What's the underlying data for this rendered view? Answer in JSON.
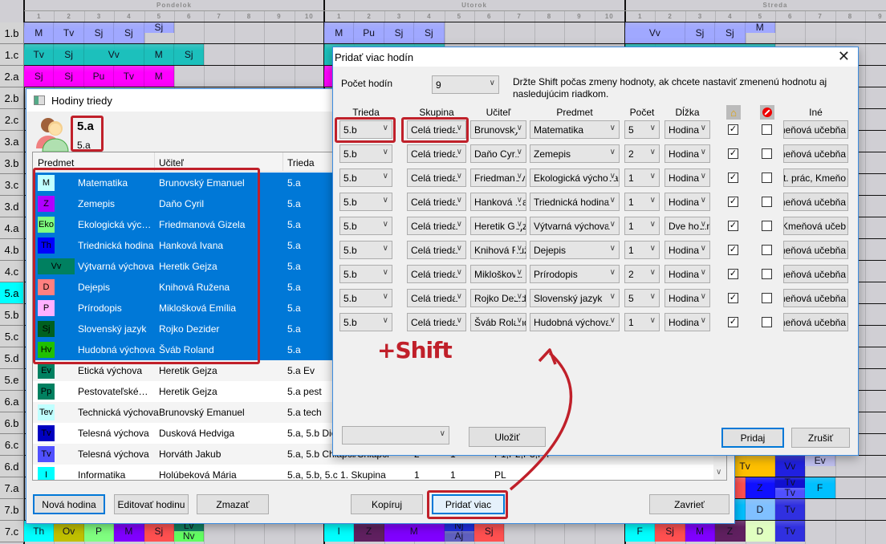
{
  "timetable": {
    "days": [
      "Pondelok",
      "Utorok",
      "Streda"
    ],
    "periods": [
      "1",
      "2",
      "3",
      "4",
      "5",
      "6",
      "7",
      "8",
      "9",
      "10"
    ],
    "rows": [
      "1.b",
      "1.c",
      "2.a",
      "2.b",
      "2.c",
      "3.a",
      "3.b",
      "3.c",
      "3.d",
      "4.a",
      "4.b",
      "4.c",
      "5.a",
      "5.b",
      "5.c",
      "5.d",
      "5.e",
      "6.a",
      "6.b",
      "6.c",
      "6.d",
      "7.a",
      "7.b",
      "7.c"
    ],
    "highlight_row": "5.a",
    "cells": [
      {
        "row": 0,
        "day": 0,
        "col": 1,
        "span": 1,
        "text": "M",
        "color": "#a0a8ff"
      },
      {
        "row": 0,
        "day": 0,
        "col": 2,
        "span": 1,
        "text": "Tv",
        "color": "#a0a8ff"
      },
      {
        "row": 0,
        "day": 0,
        "col": 3,
        "span": 1,
        "text": "Sj",
        "color": "#a0a8ff"
      },
      {
        "row": 0,
        "day": 0,
        "col": 4,
        "span": 1,
        "text": "Sj",
        "color": "#a0a8ff"
      },
      {
        "row": 0,
        "day": 0,
        "col": 5,
        "span": 1,
        "text": "Sj",
        "color": "#a0a8ff",
        "half": "top"
      },
      {
        "row": 1,
        "day": 0,
        "col": 1,
        "span": 1,
        "text": "Tv",
        "color": "#1cc0bc"
      },
      {
        "row": 1,
        "day": 0,
        "col": 2,
        "span": 1,
        "text": "Sj",
        "color": "#1cc0bc"
      },
      {
        "row": 1,
        "day": 0,
        "col": 3,
        "span": 2,
        "text": "Vv",
        "color": "#1cc0bc"
      },
      {
        "row": 1,
        "day": 0,
        "col": 5,
        "span": 1,
        "text": "M",
        "color": "#1cc0bc"
      },
      {
        "row": 1,
        "day": 0,
        "col": 6,
        "span": 1,
        "text": "Sj",
        "color": "#1cc0bc"
      },
      {
        "row": 2,
        "day": 0,
        "col": 1,
        "span": 1,
        "text": "Sj",
        "color": "#ff00ff"
      },
      {
        "row": 2,
        "day": 0,
        "col": 2,
        "span": 1,
        "text": "Sj",
        "color": "#ff00ff"
      },
      {
        "row": 2,
        "day": 0,
        "col": 3,
        "span": 1,
        "text": "Pu",
        "color": "#ff00ff"
      },
      {
        "row": 2,
        "day": 0,
        "col": 4,
        "span": 1,
        "text": "Tv",
        "color": "#ff00ff"
      },
      {
        "row": 2,
        "day": 0,
        "col": 5,
        "span": 1,
        "text": "M",
        "color": "#ff00ff"
      },
      {
        "row": 0,
        "day": 1,
        "col": 1,
        "span": 1,
        "text": "M",
        "color": "#a0a8ff"
      },
      {
        "row": 0,
        "day": 1,
        "col": 2,
        "span": 1,
        "text": "Pu",
        "color": "#a0a8ff"
      },
      {
        "row": 0,
        "day": 1,
        "col": 3,
        "span": 1,
        "text": "Sj",
        "color": "#a0a8ff"
      },
      {
        "row": 0,
        "day": 1,
        "col": 4,
        "span": 1,
        "text": "Sj",
        "color": "#a0a8ff"
      },
      {
        "row": 1,
        "day": 1,
        "col": 1,
        "span": 4,
        "text": "",
        "color": "#1cc0bc"
      },
      {
        "row": 2,
        "day": 1,
        "col": 1,
        "span": 4,
        "text": "",
        "color": "#ff00ff"
      },
      {
        "row": 0,
        "day": 2,
        "col": 1,
        "span": 2,
        "text": "Vv",
        "color": "#a0a8ff"
      },
      {
        "row": 0,
        "day": 2,
        "col": 3,
        "span": 1,
        "text": "Sj",
        "color": "#a0a8ff"
      },
      {
        "row": 0,
        "day": 2,
        "col": 4,
        "span": 1,
        "text": "Sj",
        "color": "#a0a8ff"
      },
      {
        "row": 0,
        "day": 2,
        "col": 5,
        "span": 1,
        "text": "M",
        "color": "#a0a8ff",
        "half": "top"
      },
      {
        "row": 1,
        "day": 2,
        "col": 1,
        "span": 5,
        "text": "",
        "color": "#1cc0bc"
      },
      {
        "row": 20,
        "day": 2,
        "col": 4,
        "span": 2,
        "text": "Tv",
        "color": "#ffc000"
      },
      {
        "row": 20,
        "day": 2,
        "col": 6,
        "span": 1,
        "text": "Vv",
        "color": "#2020e0"
      },
      {
        "row": 20,
        "day": 2,
        "col": 7,
        "span": 1,
        "text": "Ev",
        "color": "#c0c0f0",
        "half": "top"
      },
      {
        "row": 21,
        "day": 2,
        "col": 4,
        "span": 1,
        "text": "",
        "color": "#ff5050"
      },
      {
        "row": 21,
        "day": 2,
        "col": 5,
        "span": 1,
        "text": "Z",
        "color": "#1010ff"
      },
      {
        "row": 21,
        "day": 2,
        "col": 6,
        "span": 1,
        "text": "Tv",
        "color": "#1010d0",
        "half": "top"
      },
      {
        "row": 21,
        "day": 2,
        "col": 6,
        "span": 1,
        "text": "Tv",
        "color": "#5050ff",
        "half": "bottom"
      },
      {
        "row": 21,
        "day": 2,
        "col": 7,
        "span": 1,
        "text": "F",
        "color": "#00c0ff"
      },
      {
        "row": 22,
        "day": 2,
        "col": 4,
        "span": 1,
        "text": "",
        "color": "#00c0ff"
      },
      {
        "row": 22,
        "day": 2,
        "col": 5,
        "span": 1,
        "text": "D",
        "color": "#80c0ff"
      },
      {
        "row": 22,
        "day": 2,
        "col": 6,
        "span": 1,
        "text": "Tv",
        "color": "#3030e0"
      },
      {
        "row": 23,
        "day": 0,
        "col": 1,
        "span": 1,
        "text": "Th",
        "color": "#00ffff"
      },
      {
        "row": 23,
        "day": 0,
        "col": 2,
        "span": 1,
        "text": "Ov",
        "color": "#c0c000"
      },
      {
        "row": 23,
        "day": 0,
        "col": 3,
        "span": 1,
        "text": "P",
        "color": "#80ff80"
      },
      {
        "row": 23,
        "day": 0,
        "col": 4,
        "span": 1,
        "text": "M",
        "color": "#8000ff"
      },
      {
        "row": 23,
        "day": 0,
        "col": 5,
        "span": 1,
        "text": "Sj",
        "color": "#ff5050"
      },
      {
        "row": 23,
        "day": 0,
        "col": 6,
        "span": 1,
        "text": "Lv",
        "color": "#108060",
        "half": "top"
      },
      {
        "row": 23,
        "day": 0,
        "col": 6,
        "span": 1,
        "text": "Nv",
        "color": "#60ff60",
        "half": "bottom"
      },
      {
        "row": 23,
        "day": 1,
        "col": 1,
        "span": 1,
        "text": "I",
        "color": "#00ffff"
      },
      {
        "row": 23,
        "day": 1,
        "col": 2,
        "span": 1,
        "text": "Z",
        "color": "#602060"
      },
      {
        "row": 23,
        "day": 1,
        "col": 3,
        "span": 2,
        "text": "M",
        "color": "#8000ff"
      },
      {
        "row": 23,
        "day": 1,
        "col": 5,
        "span": 1,
        "text": "Nj",
        "color": "#2030e0",
        "half": "top"
      },
      {
        "row": 23,
        "day": 1,
        "col": 5,
        "span": 1,
        "text": "Aj",
        "color": "#6060c0",
        "half": "bottom"
      },
      {
        "row": 23,
        "day": 1,
        "col": 6,
        "span": 1,
        "text": "Sj",
        "color": "#ff5050"
      },
      {
        "row": 23,
        "day": 2,
        "col": 1,
        "span": 1,
        "text": "F",
        "color": "#00ffff"
      },
      {
        "row": 23,
        "day": 2,
        "col": 2,
        "span": 1,
        "text": "Sj",
        "color": "#ff5050"
      },
      {
        "row": 23,
        "day": 2,
        "col": 3,
        "span": 1,
        "text": "M",
        "color": "#8000ff"
      },
      {
        "row": 23,
        "day": 2,
        "col": 4,
        "span": 1,
        "text": "Z",
        "color": "#602060"
      },
      {
        "row": 23,
        "day": 2,
        "col": 5,
        "span": 1,
        "text": "D",
        "color": "#e0ffc0"
      },
      {
        "row": 23,
        "day": 2,
        "col": 6,
        "span": 1,
        "text": "Tv",
        "color": "#3030e0"
      }
    ]
  },
  "class_dialog": {
    "title": "Hodiny triedy",
    "class_name": "5.a",
    "class_short": "5.a",
    "columns": [
      "Predmet",
      "Učiteľ",
      "Trieda"
    ],
    "rows": [
      {
        "badge": "M",
        "color": "#c0ffff",
        "subject": "Matematika",
        "teacher": "Brunovský Emanuel",
        "class": "5.a",
        "selected": true
      },
      {
        "badge": "Z",
        "color": "#b000ff",
        "subject": "Zemepis",
        "teacher": "Daňo Cyril",
        "class": "5.a",
        "selected": true
      },
      {
        "badge": "Eko",
        "color": "#80ff80",
        "subject": "Ekologická výc…",
        "teacher": "Friedmanová Gizela",
        "class": "5.a",
        "selected": true
      },
      {
        "badge": "Th",
        "color": "#0000ff",
        "subject": "Triednická hodina",
        "teacher": "Hanková Ivana",
        "class": "5.a",
        "selected": true
      },
      {
        "badge": "Vv",
        "color": "#008060",
        "subject": "Výtvarná výchova",
        "teacher": "Heretik Gejza",
        "class": "5.a",
        "selected": true,
        "wide": true
      },
      {
        "badge": "D",
        "color": "#ff8080",
        "subject": "Dejepis",
        "teacher": "Knihová Ružena",
        "class": "5.a",
        "selected": true
      },
      {
        "badge": "P",
        "color": "#ffb0ff",
        "subject": "Prírodopis",
        "teacher": "Miklošková Emília",
        "class": "5.a",
        "selected": true
      },
      {
        "badge": "Sj",
        "color": "#006020",
        "subject": "Slovenský jazyk",
        "teacher": "Rojko Dezider",
        "class": "5.a",
        "selected": true
      },
      {
        "badge": "Hv",
        "color": "#20c000",
        "subject": "Hudobná výchova",
        "teacher": "Šváb Roland",
        "class": "5.a",
        "selected": true
      },
      {
        "badge": "Ev",
        "color": "#008060",
        "subject": "Etická výchova",
        "teacher": "Heretik Gejza",
        "class": "5.a Ev",
        "selected": false
      },
      {
        "badge": "Pp",
        "color": "#008060",
        "subject": "Pestovateľské…",
        "teacher": "Heretik Gejza",
        "class": "5.a pest",
        "selected": false
      },
      {
        "badge": "Tev",
        "color": "#c0ffff",
        "subject": "Technická výchova",
        "teacher": "Brunovský Emanuel",
        "class": "5.a tech",
        "selected": false
      },
      {
        "badge": "Tv",
        "color": "#0000c0",
        "subject": "Telesná výchova",
        "teacher": "Dusková Hedviga",
        "class": "5.a, 5.b Die",
        "selected": false
      },
      {
        "badge": "Tv",
        "color": "#5050ff",
        "subject": "Telesná výchova",
        "teacher": "Horváth Jakub",
        "class": "5.a, 5.b Chlapci/Chlapci",
        "extra": [
          "2",
          "1",
          "P1,P2,P3,P4"
        ],
        "selected": false
      },
      {
        "badge": "I",
        "color": "#00ffff",
        "subject": "Informatika",
        "teacher": "Holúbeková Mária",
        "class": "5.a, 5.b, 5.c 1. Skupina",
        "extra": [
          "1",
          "1",
          "PL"
        ],
        "selected": false
      }
    ],
    "buttons": {
      "new": "Nová hodina",
      "edit": "Editovať hodinu",
      "delete": "Zmazať",
      "copy": "Kopíruj",
      "add_more": "Pridať viac",
      "close": "Zavrieť"
    }
  },
  "add_dialog": {
    "title": "Pridať viac hodín",
    "count_label": "Počet hodín",
    "count_value": "9",
    "hint": "Držte Shift počas zmeny hodnoty, ak chcete nastaviť zmenenú hodnotu aj nasledujúcim riadkom.",
    "columns": [
      "Trieda",
      "Skupina",
      "Učiteľ",
      "Predmet",
      "Počet",
      "Dĺžka",
      "",
      "",
      "Iné"
    ],
    "rows": [
      {
        "class": "5.b",
        "group": "Celá trieda",
        "teacher": "Brunovský",
        "subject": "Matematika",
        "count": "5",
        "length": "Hodina",
        "home": true,
        "block": false,
        "other": "Kmeňová učebňa"
      },
      {
        "class": "5.b",
        "group": "Celá trieda",
        "teacher": "Daňo Cyril",
        "subject": "Zemepis",
        "count": "2",
        "length": "Hodina",
        "home": true,
        "block": false,
        "other": "Kmeňová učebňa"
      },
      {
        "class": "5.b",
        "group": "Celá trieda",
        "teacher": "Friedmanová",
        "subject": "Ekologická výchova",
        "count": "1",
        "length": "Hodina",
        "home": true,
        "block": false,
        "other": "st. prác, Kmeňo"
      },
      {
        "class": "5.b",
        "group": "Celá trieda",
        "teacher": "Hanková Ivana",
        "subject": "Triednická hodina",
        "count": "1",
        "length": "Hodina",
        "home": true,
        "block": false,
        "other": "Kmeňová učebňa"
      },
      {
        "class": "5.b",
        "group": "Celá trieda",
        "teacher": "Heretik Gejza",
        "subject": "Výtvarná výchova",
        "count": "1",
        "length": "Dve hodiny",
        "home": true,
        "block": false,
        "other": "), Kmeňová učeb"
      },
      {
        "class": "5.b",
        "group": "Celá trieda",
        "teacher": "Knihová Ružena",
        "subject": "Dejepis",
        "count": "1",
        "length": "Hodina",
        "home": true,
        "block": false,
        "other": "Kmeňová učebňa"
      },
      {
        "class": "5.b",
        "group": "Celá trieda",
        "teacher": "Mikloškova",
        "subject": "Prírodopis",
        "count": "2",
        "length": "Hodina",
        "home": true,
        "block": false,
        "other": "Kmeňová učebňa"
      },
      {
        "class": "5.b",
        "group": "Celá trieda",
        "teacher": "Rojko Dezider",
        "subject": "Slovenský jazyk",
        "count": "5",
        "length": "Hodina",
        "home": true,
        "block": false,
        "other": "Kmeňová učebňa"
      },
      {
        "class": "5.b",
        "group": "Celá trieda",
        "teacher": "Šváb Roland",
        "subject": "Hudobná výchova",
        "count": "1",
        "length": "Hodina",
        "home": true,
        "block": false,
        "other": "Kmeňová učebňa"
      }
    ],
    "bottom_select": "",
    "buttons": {
      "save": "Uložiť",
      "add": "Pridaj",
      "cancel": "Zrušiť"
    }
  },
  "annotation": {
    "shift_text": "+Shift",
    "color": "#c0202a"
  },
  "icons": {
    "home": "home-icon",
    "block": "no-entry-icon",
    "close": "close-icon",
    "window": "window-icon",
    "avatar": "class-avatar-icon"
  }
}
